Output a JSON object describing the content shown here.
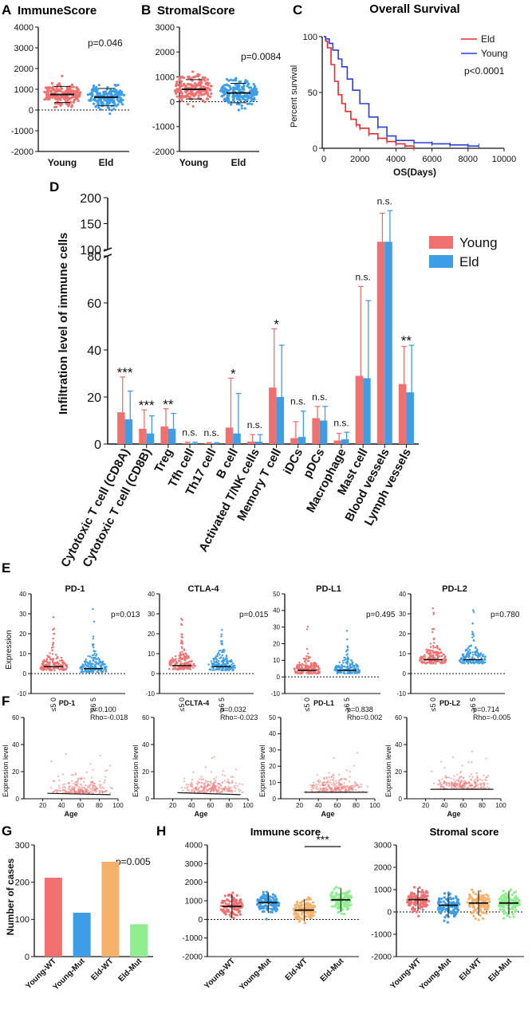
{
  "colors": {
    "red": "#f07070",
    "blue": "#3d9ee6",
    "orange": "#f6b26b",
    "green": "#90ee90",
    "dark": "#111111",
    "kmRed": "#e8282a",
    "kmBlue": "#2c3fd6"
  },
  "panel_labels": [
    "A",
    "B",
    "C",
    "D",
    "E",
    "F",
    "G",
    "H"
  ],
  "chart_data": [
    {
      "id": "A",
      "type": "scatter",
      "title": "ImmuneScore",
      "categories": [
        "Young",
        "Eld"
      ],
      "ylim": [
        -2000,
        4000
      ],
      "yticks": [
        -2000,
        -1000,
        0,
        1000,
        2000,
        3000,
        4000
      ],
      "medians": [
        750,
        620
      ],
      "spread_sd": [
        650,
        700
      ],
      "pvalue": "p=0.046",
      "colors": [
        "#f07070",
        "#3d9ee6"
      ]
    },
    {
      "id": "B",
      "type": "scatter",
      "title": "StromalScore",
      "categories": [
        "Young",
        "Eld"
      ],
      "ylim": [
        -2000,
        3000
      ],
      "yticks": [
        -2000,
        -1000,
        0,
        1000,
        2000,
        3000
      ],
      "medians": [
        500,
        350
      ],
      "spread_sd": [
        650,
        650
      ],
      "pvalue": "p=0.0084",
      "colors": [
        "#f07070",
        "#3d9ee6"
      ]
    },
    {
      "id": "C",
      "type": "line",
      "title": "Overall Survival",
      "xlabel": "OS(Days)",
      "ylabel": "Percent survival",
      "xlim": [
        0,
        10000
      ],
      "ylim": [
        0,
        100
      ],
      "xticks": [
        0,
        2000,
        4000,
        6000,
        8000,
        10000
      ],
      "yticks": [
        0,
        50,
        100
      ],
      "legend": [
        "Eld",
        "Young"
      ],
      "pvalue": "p<0.0001",
      "series": [
        {
          "name": "Eld",
          "x": [
            0,
            100,
            200,
            400,
            600,
            800,
            1000,
            1200,
            1500,
            1800,
            2000,
            2500,
            3000,
            3500,
            4000,
            4500,
            5000
          ],
          "y": [
            100,
            96,
            90,
            75,
            60,
            48,
            40,
            33,
            26,
            21,
            18,
            13,
            9,
            6,
            4,
            2,
            0
          ]
        },
        {
          "name": "Young",
          "x": [
            0,
            100,
            300,
            500,
            800,
            1000,
            1300,
            1600,
            2000,
            2500,
            3000,
            3500,
            4000,
            5000,
            6000,
            7000,
            8000,
            8600
          ],
          "y": [
            100,
            98,
            94,
            88,
            80,
            73,
            62,
            52,
            40,
            28,
            19,
            11,
            7,
            5,
            4,
            3,
            2,
            2
          ]
        }
      ]
    },
    {
      "id": "D",
      "type": "bar",
      "ylabel": "Infiltration level of immune cells",
      "legend": [
        "Young",
        "Eld"
      ],
      "categories": [
        "Cytotoxic T cell (CD8A)",
        "Cytotoxic T cell (CD8B)",
        "Treg",
        "Tfh cell",
        "Th17 cell",
        "B cell",
        "Activated T/NK cells",
        "Memory T cell",
        "iDCs",
        "pDCs",
        "Macrophage",
        "Mast cell",
        "Blood vessels",
        "Lymph vessels"
      ],
      "series": [
        {
          "name": "Young",
          "values": [
            13.5,
            6.5,
            7.5,
            0.4,
            0.3,
            7,
            1,
            24,
            2.5,
            11,
            1.5,
            29,
            115,
            25.5
          ],
          "errors": [
            15,
            8,
            7.5,
            0.4,
            0.3,
            21,
            3,
            25,
            7,
            5,
            3,
            38,
            55,
            16
          ]
        },
        {
          "name": "Eld",
          "values": [
            10.5,
            4.5,
            6.5,
            0.4,
            0.3,
            4.5,
            1,
            20,
            3,
            10,
            2,
            28,
            115,
            22
          ],
          "errors": [
            12,
            7.5,
            6.5,
            0.4,
            0.3,
            17,
            3,
            22,
            11,
            6,
            3,
            33,
            60,
            20
          ]
        }
      ],
      "significance": [
        "***",
        "***",
        "**",
        "n.s.",
        "n.s.",
        "*",
        "n.s.",
        "*",
        "n.s.",
        "n.s.",
        "n.s.",
        "n.s.",
        "n.s.",
        "**"
      ],
      "yticks_lower": [
        0,
        20,
        40,
        60,
        80
      ],
      "yticks_upper": [
        100,
        150,
        200
      ]
    },
    {
      "id": "E",
      "type": "scatter",
      "ylabel": "Expression",
      "xlabels": [
        "≤5 0",
        "≥6 5"
      ],
      "subplots": [
        {
          "title": "PD-1",
          "pvalue": "p=0.013",
          "ylim": [
            -10,
            40
          ],
          "yticks": [
            -10,
            0,
            10,
            20,
            30,
            40
          ],
          "medians": [
            3.5,
            2.5
          ]
        },
        {
          "title": "CTLA-4",
          "pvalue": "p=0.015",
          "ylim": [
            -10,
            40
          ],
          "yticks": [
            -10,
            0,
            10,
            20,
            30,
            40
          ],
          "medians": [
            4,
            3.5
          ]
        },
        {
          "title": "PD-L1",
          "pvalue": "p=0.495",
          "ylim": [
            -10,
            50
          ],
          "yticks": [
            -10,
            0,
            10,
            20,
            30,
            40,
            50
          ],
          "medians": [
            4,
            4
          ]
        },
        {
          "title": "PD-L2",
          "pvalue": "p=0.780",
          "ylim": [
            -10,
            40
          ],
          "yticks": [
            -10,
            0,
            10,
            20,
            30,
            40
          ],
          "medians": [
            7,
            7
          ]
        }
      ]
    },
    {
      "id": "F",
      "type": "scatter",
      "xlabel": "Age",
      "ylabel": "Expression level",
      "xlim": [
        0,
        100
      ],
      "xticks": [
        20,
        40,
        60,
        80,
        100
      ],
      "subplots": [
        {
          "title": "PD-1",
          "p": "p=0.100",
          "rho": "Rho=-0.018",
          "ylim": [
            0,
            60
          ],
          "yticks": [
            0,
            20,
            40,
            60
          ],
          "fit": [
            4,
            3
          ]
        },
        {
          "title": "CLTA-4",
          "p": "p=0.032",
          "rho": "Rho=-0.023",
          "ylim": [
            0,
            60
          ],
          "yticks": [
            0,
            20,
            40,
            60
          ],
          "fit": [
            4.5,
            3
          ]
        },
        {
          "title": "PD-L1",
          "p": "p=0.838",
          "rho": "Rho=0.002",
          "ylim": [
            0,
            50
          ],
          "yticks": [
            0,
            10,
            20,
            30,
            40,
            50
          ],
          "fit": [
            4,
            4
          ]
        },
        {
          "title": "PD-L2",
          "p": "p=0.714",
          "rho": "Rho=-0.005",
          "ylim": [
            0,
            60
          ],
          "yticks": [
            0,
            20,
            40,
            60
          ],
          "fit": [
            7,
            7
          ]
        }
      ]
    },
    {
      "id": "G",
      "type": "bar",
      "ylabel": "Number of cases",
      "categories": [
        "Young-WT",
        "Young-Mut",
        "Eld-WT",
        "Eld-Mut"
      ],
      "values": [
        212,
        118,
        255,
        87
      ],
      "ylim": [
        0,
        300
      ],
      "yticks": [
        0,
        100,
        200,
        300
      ],
      "pvalue": "p=0.005",
      "colors": [
        "#f07070",
        "#3d9ee6",
        "#f6b26b",
        "#90ee90"
      ]
    },
    {
      "id": "H",
      "type": "scatter",
      "categories": [
        "Young-WT",
        "Young-Mut",
        "Eld-WT",
        "Eld-Mut"
      ],
      "colors": [
        "#f07070",
        "#3d9ee6",
        "#f6b26b",
        "#90ee90"
      ],
      "subplots": [
        {
          "title": "Immune score",
          "ylim": [
            -2000,
            4000
          ],
          "yticks": [
            -2000,
            -1000,
            0,
            1000,
            2000,
            3000,
            4000
          ],
          "medians": [
            700,
            900,
            500,
            1050
          ],
          "sd": [
            800,
            700,
            750,
            800
          ],
          "annotation": "***"
        },
        {
          "title": "Stromal score",
          "ylim": [
            -2000,
            3000
          ],
          "yticks": [
            -2000,
            -1000,
            0,
            1000,
            2000,
            3000
          ],
          "medians": [
            550,
            300,
            400,
            400
          ],
          "sd": [
            650,
            650,
            700,
            650
          ]
        }
      ]
    }
  ]
}
